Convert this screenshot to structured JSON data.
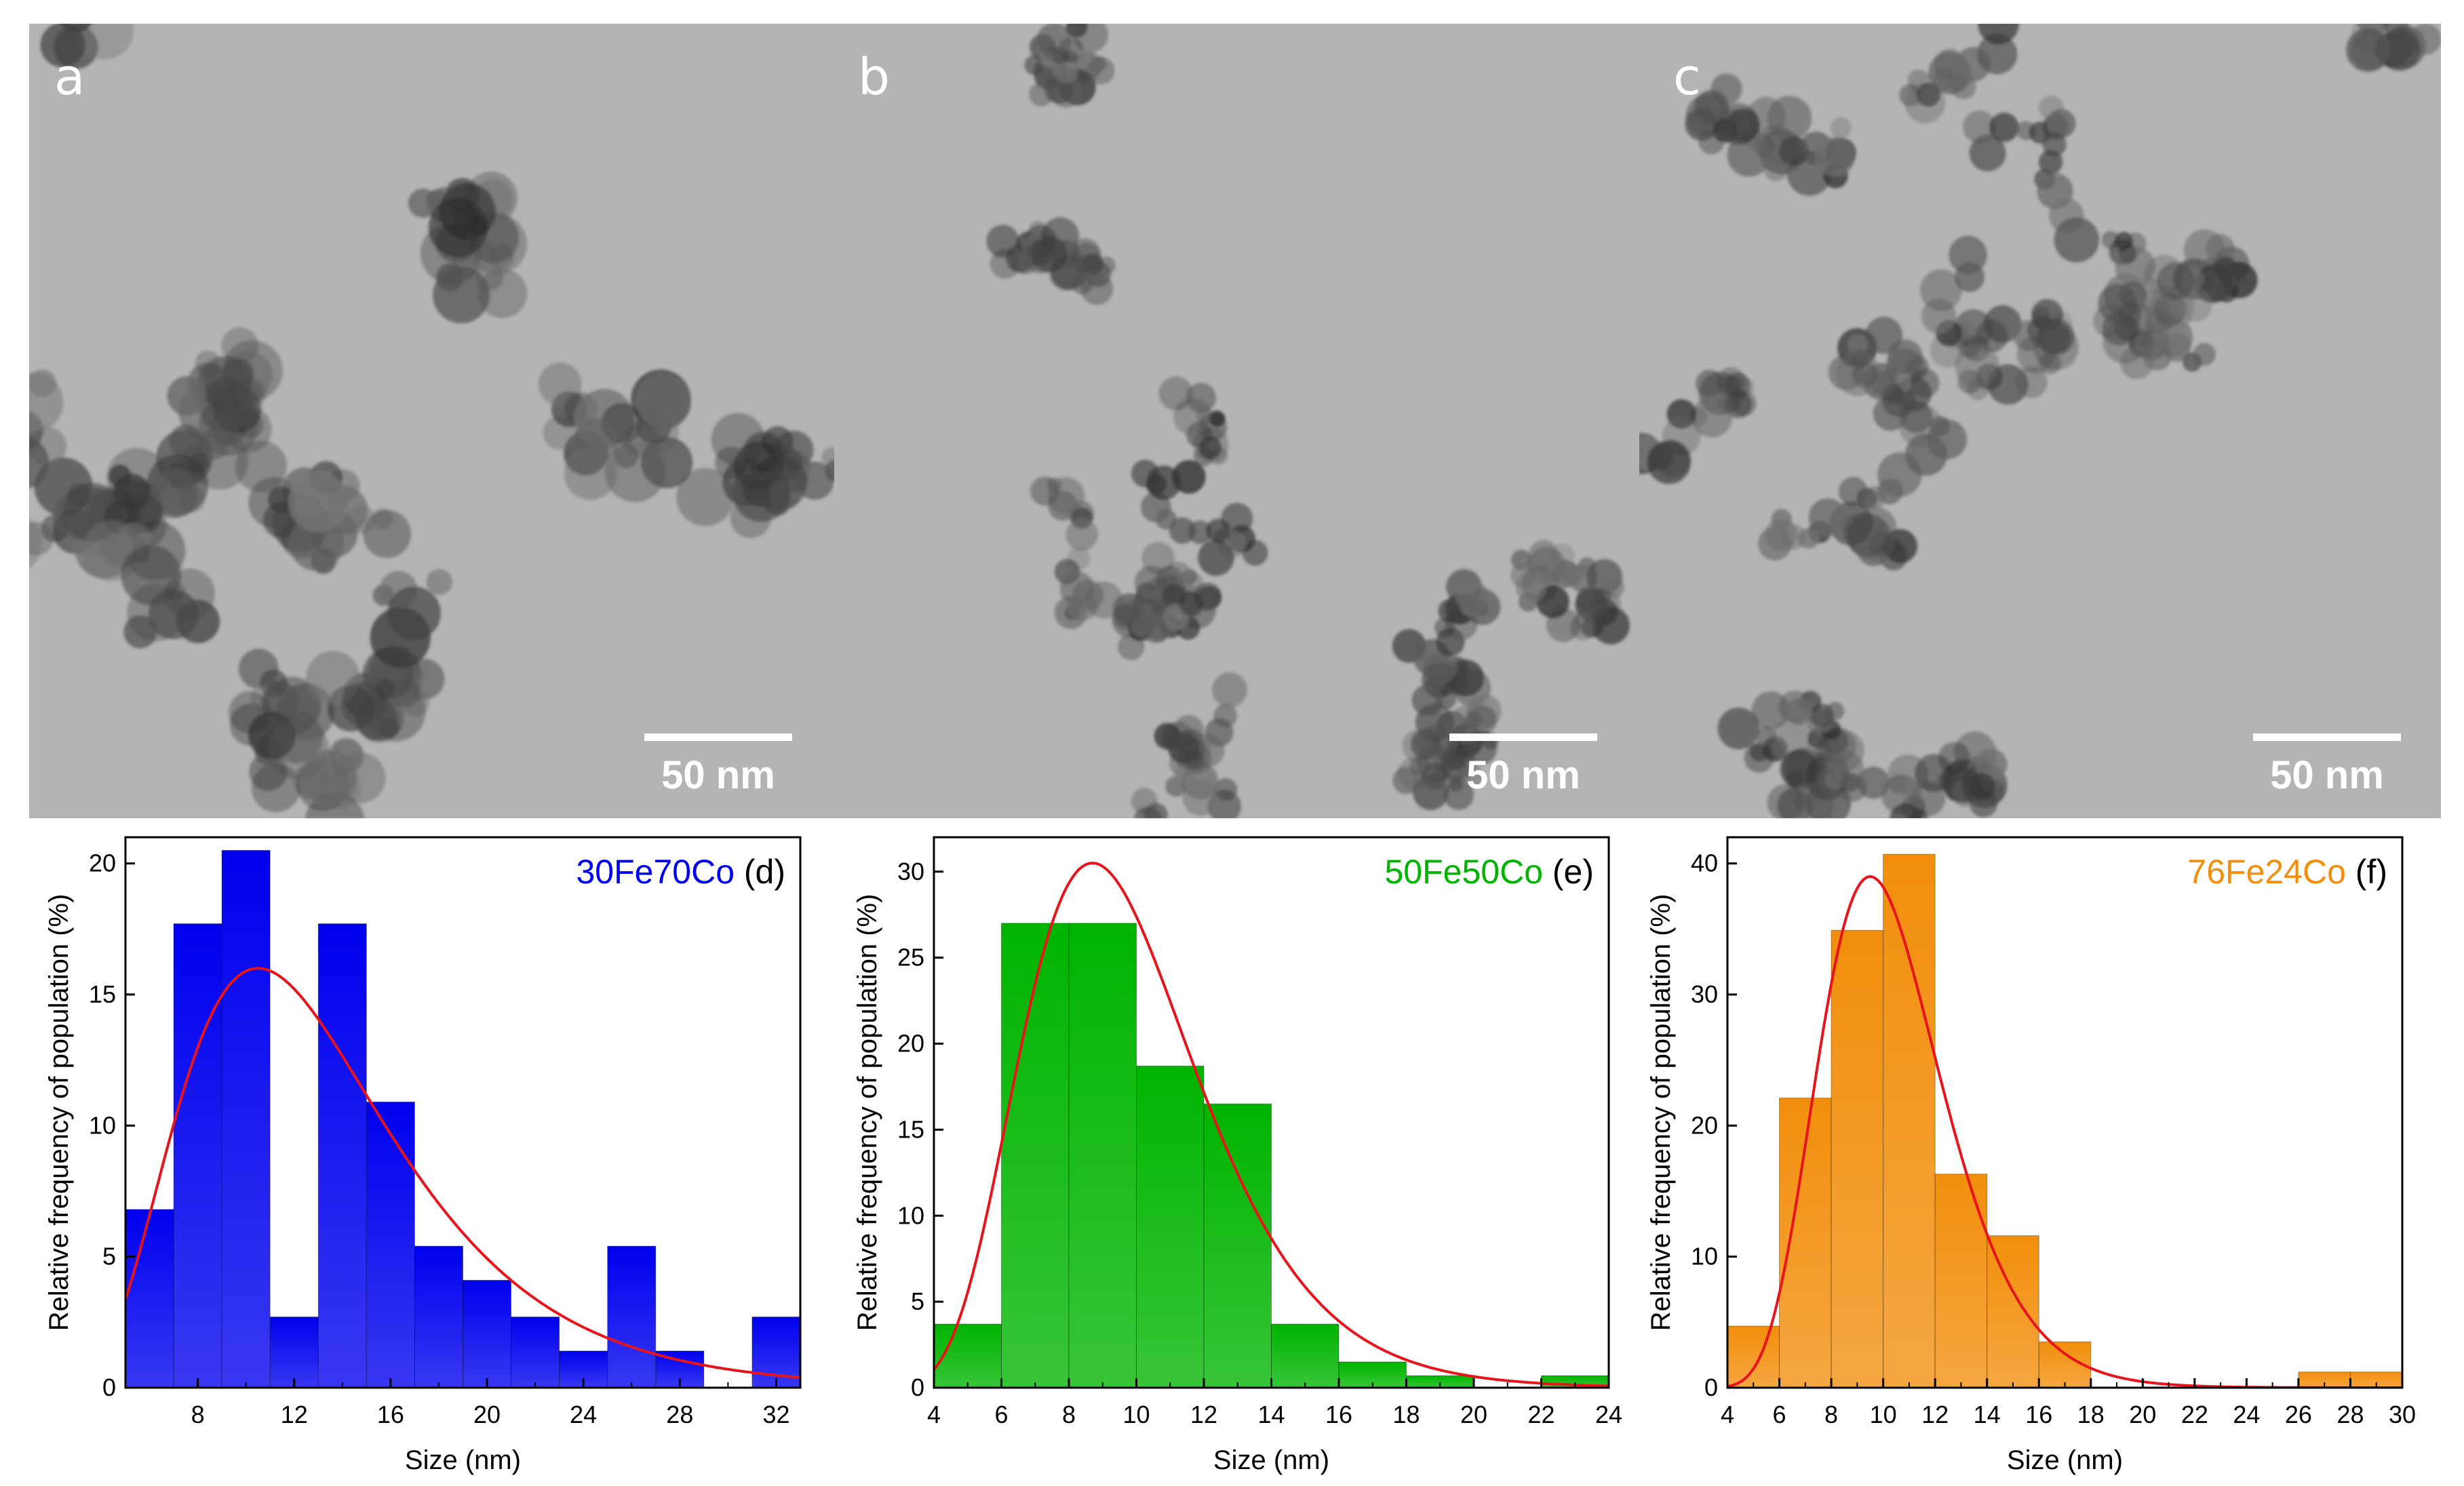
{
  "tem_panels": [
    {
      "letter": "a",
      "scale_label": "50 nm"
    },
    {
      "letter": "b",
      "scale_label": "50 nm"
    },
    {
      "letter": "c",
      "scale_label": "50 nm"
    }
  ],
  "colors": {
    "d": "#0000ee",
    "e": "#00b400",
    "f": "#f28e0c",
    "fit": "#e8141c"
  },
  "chart_data": [
    {
      "type": "bar",
      "panel": "d",
      "title": "30Fe70Co",
      "panel_label": "(d)",
      "xlabel": "Size (nm)",
      "ylabel": "Relative frequency of population (%)",
      "xlim": [
        5,
        33
      ],
      "ylim": [
        0,
        21
      ],
      "xticks": [
        8,
        12,
        16,
        20,
        24,
        28,
        32
      ],
      "yticks": [
        0,
        5,
        10,
        15,
        20
      ],
      "bin_width": 2,
      "bins": [
        [
          5,
          6.8
        ],
        [
          7,
          17.7
        ],
        [
          9,
          20.5
        ],
        [
          11,
          2.7
        ],
        [
          13,
          17.7
        ],
        [
          15,
          10.9
        ],
        [
          17,
          5.4
        ],
        [
          19,
          4.1
        ],
        [
          21,
          2.7
        ],
        [
          23,
          1.4
        ],
        [
          25,
          5.4
        ],
        [
          27,
          1.4
        ],
        [
          31,
          2.7
        ]
      ],
      "fit": {
        "type": "lognormal",
        "mode": 10.5,
        "peak": 16,
        "sigma": 0.42
      }
    },
    {
      "type": "bar",
      "panel": "e",
      "title": "50Fe50Co",
      "panel_label": "(e)",
      "xlabel": "Size (nm)",
      "ylabel": "Relative frequency of population (%)",
      "xlim": [
        4,
        24
      ],
      "ylim": [
        0,
        32
      ],
      "xticks": [
        4,
        6,
        8,
        10,
        12,
        14,
        16,
        18,
        20,
        22,
        24
      ],
      "yticks": [
        0,
        5,
        10,
        15,
        20,
        25,
        30
      ],
      "bin_width": 2,
      "bins": [
        [
          4,
          3.7
        ],
        [
          6,
          27
        ],
        [
          8,
          27
        ],
        [
          10,
          18.7
        ],
        [
          12,
          16.5
        ],
        [
          14,
          3.7
        ],
        [
          16,
          1.5
        ],
        [
          18,
          0.7
        ],
        [
          22,
          0.7
        ]
      ],
      "fit": {
        "type": "lognormal",
        "mode": 8.7,
        "peak": 30.5,
        "sigma": 0.3
      }
    },
    {
      "type": "bar",
      "panel": "f",
      "title": "76Fe24Co",
      "panel_label": "(f)",
      "xlabel": "Size (nm)",
      "ylabel": "Relative frequency of population (%)",
      "xlim": [
        4,
        30
      ],
      "ylim": [
        0,
        42
      ],
      "xticks": [
        4,
        6,
        8,
        10,
        12,
        14,
        16,
        18,
        20,
        22,
        24,
        26,
        28,
        30
      ],
      "yticks": [
        0,
        10,
        20,
        30,
        40
      ],
      "bin_width": 2,
      "bins": [
        [
          4,
          4.7
        ],
        [
          6,
          22.1
        ],
        [
          8,
          34.9
        ],
        [
          10,
          40.7
        ],
        [
          12,
          16.3
        ],
        [
          14,
          11.6
        ],
        [
          16,
          3.5
        ],
        [
          26,
          1.2
        ],
        [
          28,
          1.2
        ]
      ],
      "fit": {
        "type": "lognormal",
        "mode": 9.5,
        "peak": 39,
        "sigma": 0.25
      }
    }
  ]
}
